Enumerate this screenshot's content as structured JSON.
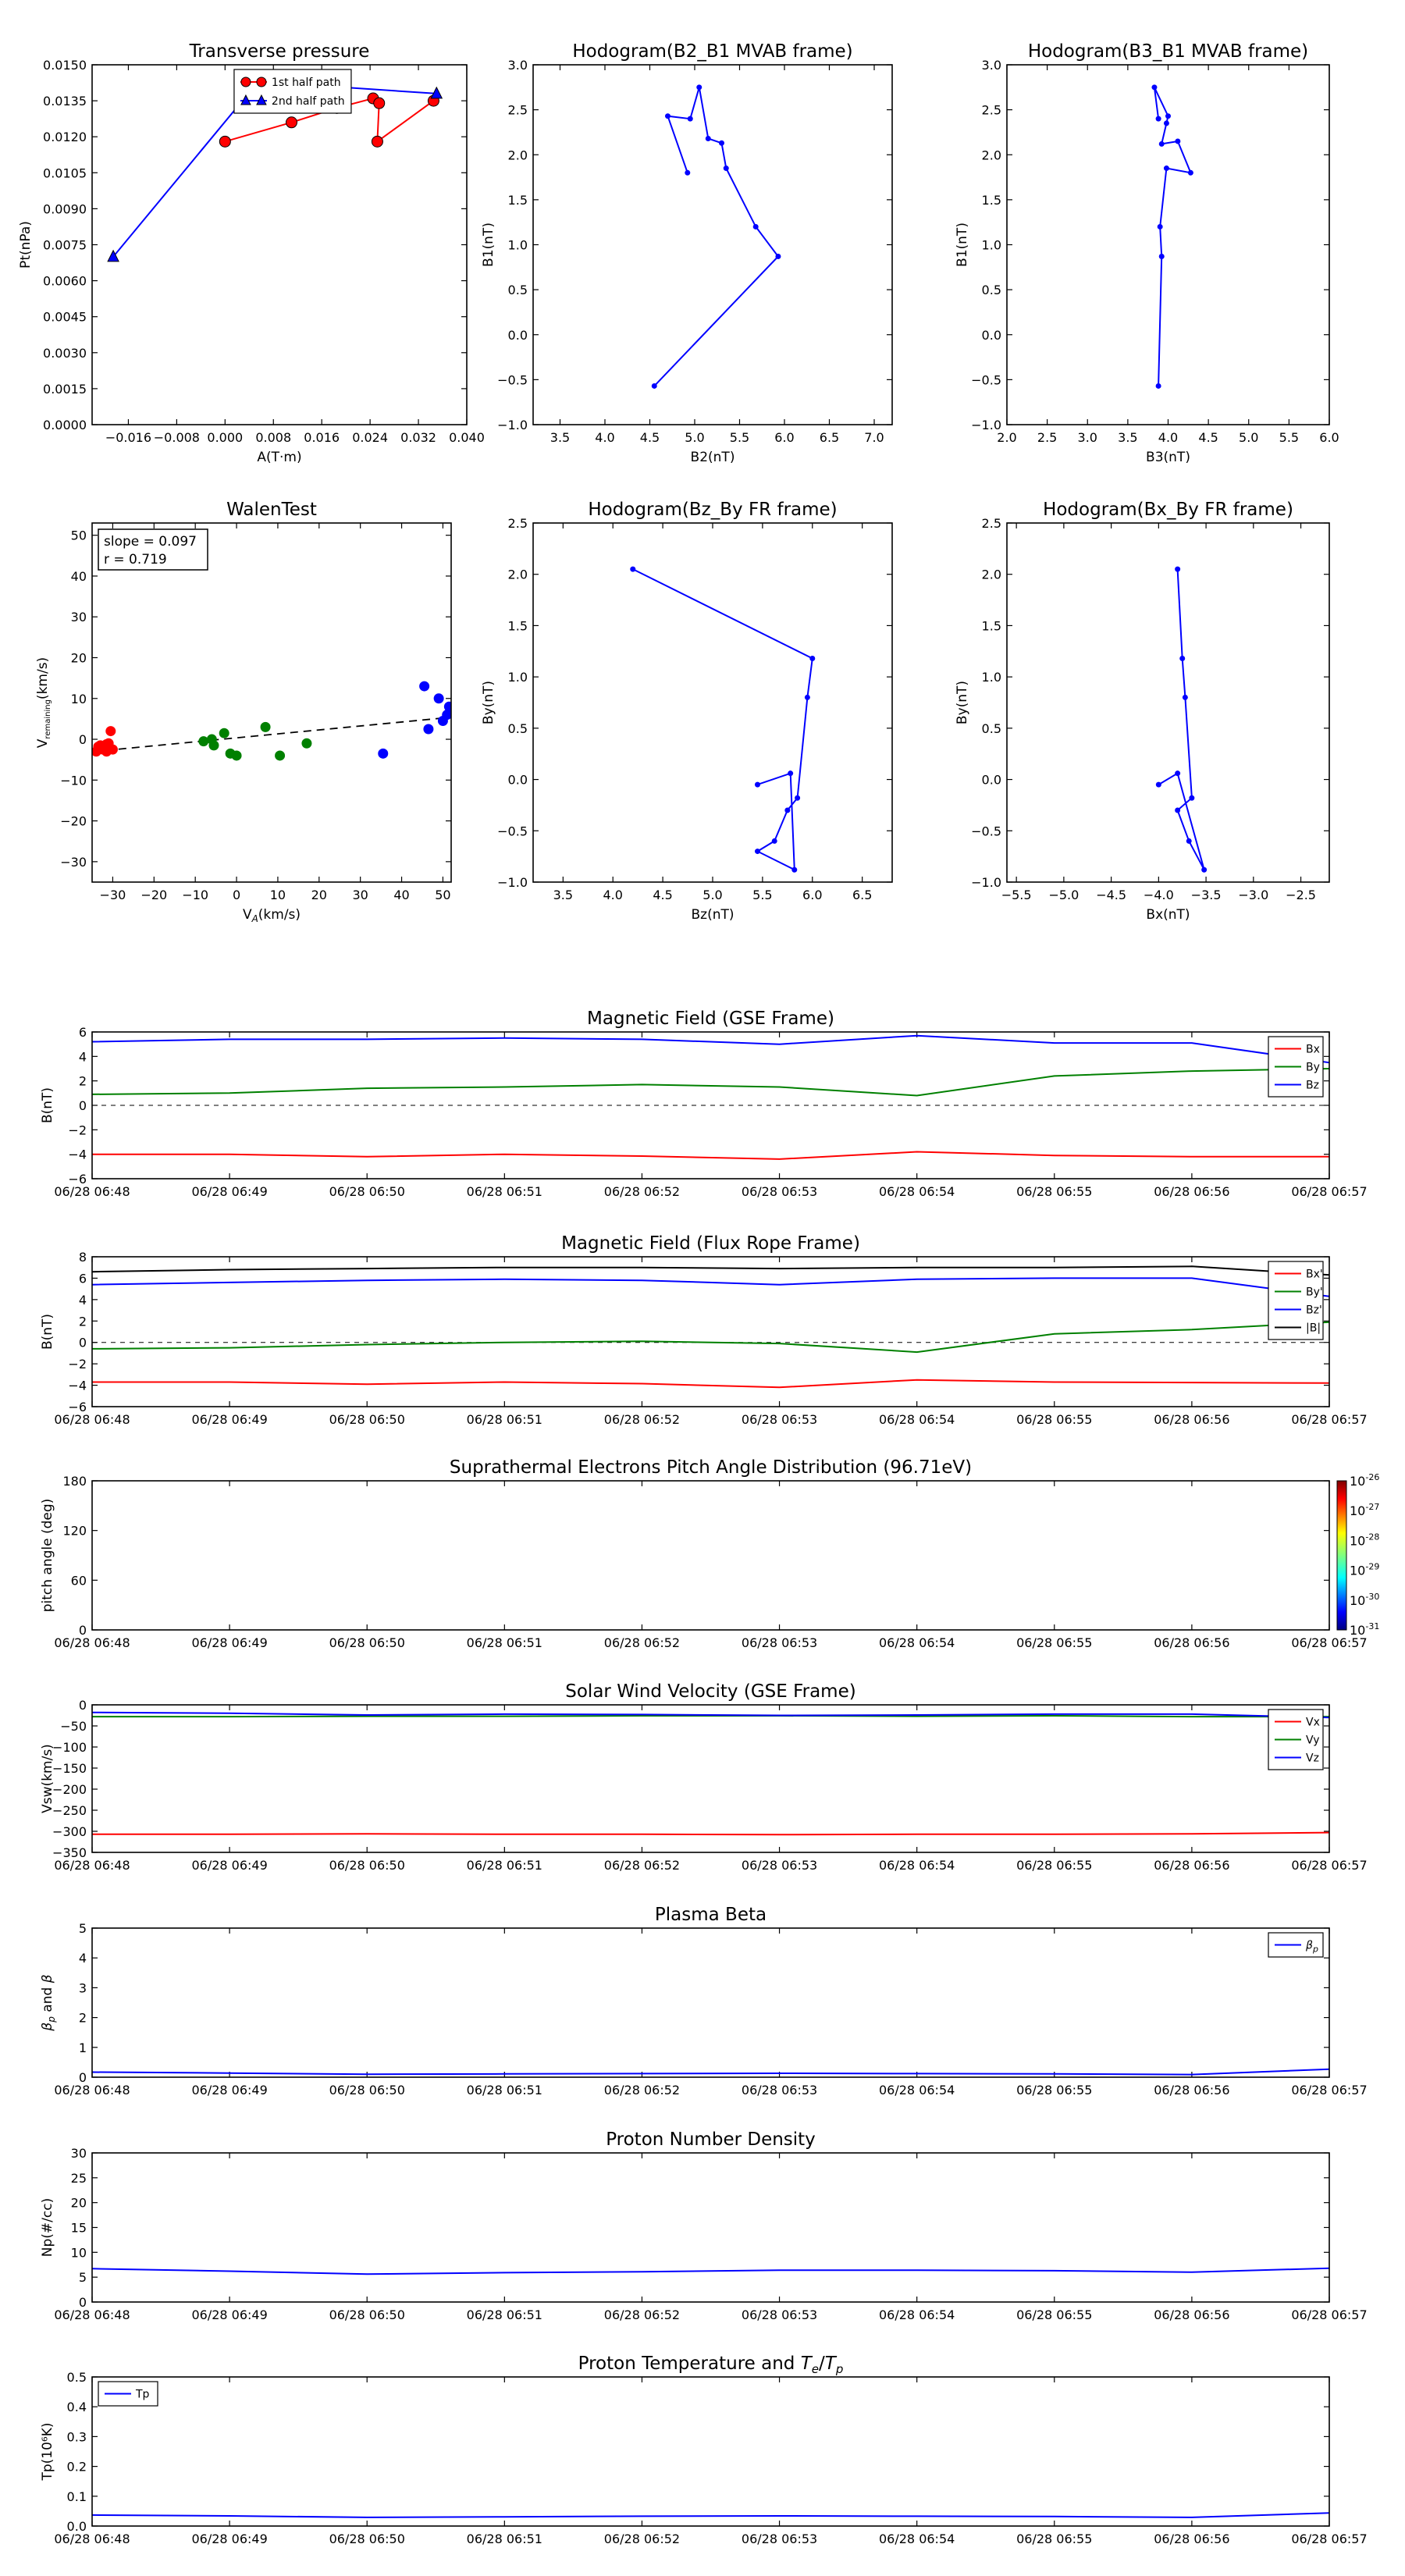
{
  "chart_data": [
    {
      "id": "tp",
      "type": "line",
      "title": "Transverse pressure",
      "xlabel": "A(T·m)",
      "ylabel": "Pt(nPa)",
      "xlim": [
        -0.022,
        0.04
      ],
      "ylim": [
        0,
        0.015
      ],
      "xticks": [
        -0.016,
        -0.008,
        0.0,
        0.008,
        0.016,
        0.024,
        0.032,
        0.04
      ],
      "xtick_labels": [
        "−0.016",
        "−0.008",
        "0.000",
        "0.008",
        "0.016",
        "0.024",
        "0.032",
        "0.040"
      ],
      "yticks": [
        0,
        0.0015,
        0.003,
        0.0045,
        0.006,
        0.0075,
        0.009,
        0.0105,
        0.012,
        0.0135,
        0.015
      ],
      "ytick_labels": [
        "0.0000",
        "0.0015",
        "0.0030",
        "0.0045",
        "0.0060",
        "0.0075",
        "0.0090",
        "0.0105",
        "0.0120",
        "0.0135",
        "0.0150"
      ],
      "legend": "top-center",
      "series": [
        {
          "name": "1st half path",
          "color": "#ff0000",
          "marker": "circle",
          "x": [
            0.0,
            0.011,
            0.0185,
            0.0245,
            0.0255,
            0.0252,
            0.0345
          ],
          "y": [
            0.0118,
            0.0126,
            0.0132,
            0.0136,
            0.0134,
            0.0118,
            0.0135
          ]
        },
        {
          "name": "2nd half path",
          "color": "#0000ff",
          "marker": "triangle",
          "x": [
            -0.0185,
            0.0055,
            0.035
          ],
          "y": [
            0.007,
            0.0143,
            0.0138
          ]
        }
      ]
    },
    {
      "id": "h21",
      "type": "line",
      "title": "Hodogram(B2_B1 MVAB frame)",
      "xlabel": "B2(nT)",
      "ylabel": "B1(nT)",
      "xlim": [
        3.2,
        7.2
      ],
      "ylim": [
        -1.0,
        3.0
      ],
      "xticks": [
        3.5,
        4.0,
        4.5,
        5.0,
        5.5,
        6.0,
        6.5,
        7.0
      ],
      "xtick_labels": [
        "3.5",
        "4.0",
        "4.5",
        "5.0",
        "5.5",
        "6.0",
        "6.5",
        "7.0"
      ],
      "yticks": [
        -1.0,
        -0.5,
        0.0,
        0.5,
        1.0,
        1.5,
        2.0,
        2.5,
        3.0
      ],
      "ytick_labels": [
        "−1.0",
        "−0.5",
        "0.0",
        "0.5",
        "1.0",
        "1.5",
        "2.0",
        "2.5",
        "3.0"
      ],
      "series": [
        {
          "color": "#0000ff",
          "x": [
            4.55,
            5.93,
            5.68,
            5.35,
            5.3,
            5.15,
            5.05,
            4.95,
            4.7,
            4.92
          ],
          "y": [
            -0.57,
            0.87,
            1.2,
            1.85,
            2.13,
            2.18,
            2.75,
            2.4,
            2.43,
            1.8
          ]
        }
      ]
    },
    {
      "id": "h31",
      "type": "line",
      "title": "Hodogram(B3_B1 MVAB frame)",
      "xlabel": "B3(nT)",
      "ylabel": "B1(nT)",
      "xlim": [
        2.0,
        6.0
      ],
      "ylim": [
        -1.0,
        3.0
      ],
      "xticks": [
        2.0,
        2.5,
        3.0,
        3.5,
        4.0,
        4.5,
        5.0,
        5.5,
        6.0
      ],
      "xtick_labels": [
        "2.0",
        "2.5",
        "3.0",
        "3.5",
        "4.0",
        "4.5",
        "5.0",
        "5.5",
        "6.0"
      ],
      "yticks": [
        -1.0,
        -0.5,
        0.0,
        0.5,
        1.0,
        1.5,
        2.0,
        2.5,
        3.0
      ],
      "ytick_labels": [
        "−1.0",
        "−0.5",
        "0.0",
        "0.5",
        "1.0",
        "1.5",
        "2.0",
        "2.5",
        "3.0"
      ],
      "series": [
        {
          "color": "#0000ff",
          "x": [
            3.88,
            3.92,
            3.9,
            3.98,
            4.28,
            4.12,
            3.92,
            3.98,
            4.0,
            3.83,
            3.88
          ],
          "y": [
            -0.57,
            0.87,
            1.2,
            1.85,
            1.8,
            2.15,
            2.12,
            2.35,
            2.43,
            2.75,
            2.4
          ]
        }
      ]
    },
    {
      "id": "walen",
      "type": "scatter",
      "title": "WalenTest",
      "xlabel": "V_A(km/s)",
      "ylabel": "V_remaining(km/s)",
      "xlim": [
        -35,
        52
      ],
      "ylim": [
        -35,
        53
      ],
      "xticks": [
        -30,
        -20,
        -10,
        0,
        10,
        20,
        30,
        40,
        50
      ],
      "xtick_labels": [
        "−30",
        "−20",
        "−10",
        "0",
        "10",
        "20",
        "30",
        "40",
        "50"
      ],
      "yticks": [
        -30,
        -20,
        -10,
        0,
        10,
        20,
        30,
        40,
        50
      ],
      "ytick_labels": [
        "−30",
        "−20",
        "−10",
        "0",
        "10",
        "20",
        "30",
        "40",
        "50"
      ],
      "annotation": [
        "slope = 0.097",
        "r = 0.719"
      ],
      "fit": {
        "slope": 0.097,
        "intercept": 0.35,
        "x": [
          -35,
          52
        ]
      },
      "series": [
        {
          "color": "#ff0000",
          "x": [
            -34,
            -33,
            -32.5,
            -32,
            -31.5,
            -31,
            -30.5,
            -30,
            -33.5,
            -31.5
          ],
          "y": [
            -3,
            -1.5,
            -2.5,
            -2,
            -3,
            -1,
            2,
            -2.5,
            -1.8,
            -1.2
          ]
        },
        {
          "color": "#008000",
          "x": [
            -8,
            -6,
            -5.5,
            -3,
            -1.5,
            0,
            7,
            10.5,
            17
          ],
          "y": [
            -0.5,
            0,
            -1.5,
            1.5,
            -3.5,
            -4,
            3,
            -4,
            -1
          ]
        },
        {
          "color": "#0000ff",
          "x": [
            35.5,
            45.5,
            46.5,
            49,
            50,
            51,
            51.5
          ],
          "y": [
            -3.5,
            13,
            2.5,
            10,
            4.5,
            6,
            8
          ]
        }
      ]
    },
    {
      "id": "hzy",
      "type": "line",
      "title": "Hodogram(Bz_By FR frame)",
      "xlabel": "Bz(nT)",
      "ylabel": "By(nT)",
      "xlim": [
        3.2,
        6.8
      ],
      "ylim": [
        -1.0,
        2.5
      ],
      "xticks": [
        3.5,
        4.0,
        4.5,
        5.0,
        5.5,
        6.0,
        6.5
      ],
      "xtick_labels": [
        "3.5",
        "4.0",
        "4.5",
        "5.0",
        "5.5",
        "6.0",
        "6.5"
      ],
      "yticks": [
        -1.0,
        -0.5,
        0.0,
        0.5,
        1.0,
        1.5,
        2.0,
        2.5
      ],
      "ytick_labels": [
        "−1.0",
        "−0.5",
        "0.0",
        "0.5",
        "1.0",
        "1.5",
        "2.0",
        "2.5"
      ],
      "series": [
        {
          "color": "#0000ff",
          "x": [
            4.2,
            6.0,
            5.95,
            5.85,
            5.75,
            5.62,
            5.45,
            5.82,
            5.78,
            5.45
          ],
          "y": [
            2.05,
            1.18,
            0.8,
            -0.18,
            -0.3,
            -0.6,
            -0.7,
            -0.88,
            0.06,
            -0.05
          ]
        }
      ]
    },
    {
      "id": "hxy",
      "type": "line",
      "title": "Hodogram(Bx_By FR frame)",
      "xlabel": "Bx(nT)",
      "ylabel": "By(nT)",
      "xlim": [
        -5.6,
        -2.2
      ],
      "ylim": [
        -1.0,
        2.5
      ],
      "xticks": [
        -5.5,
        -5.0,
        -4.5,
        -4.0,
        -3.5,
        -3.0,
        -2.5
      ],
      "xtick_labels": [
        "−5.5",
        "−5.0",
        "−4.5",
        "−4.0",
        "−3.5",
        "−3.0",
        "−2.5"
      ],
      "yticks": [
        -1.0,
        -0.5,
        0.0,
        0.5,
        1.0,
        1.5,
        2.0,
        2.5
      ],
      "ytick_labels": [
        "−1.0",
        "−0.5",
        "0.0",
        "0.5",
        "1.0",
        "1.5",
        "2.0",
        "2.5"
      ],
      "series": [
        {
          "color": "#0000ff",
          "x": [
            -3.8,
            -3.75,
            -3.72,
            -3.65,
            -3.8,
            -3.68,
            -3.52,
            -3.8,
            -4.0
          ],
          "y": [
            2.05,
            1.18,
            0.8,
            -0.18,
            -0.3,
            -0.6,
            -0.88,
            0.06,
            -0.05
          ]
        }
      ]
    },
    {
      "id": "mag_gse",
      "type": "line",
      "title": "Magnetic Field (GSE Frame)",
      "ylabel": "B(nT)",
      "xlim": [
        0,
        9
      ],
      "x_labels": [
        "06/28 06:48",
        "06/28 06:49",
        "06/28 06:50",
        "06/28 06:51",
        "06/28 06:52",
        "06/28 06:53",
        "06/28 06:54",
        "06/28 06:55",
        "06/28 06:56",
        "06/28 06:57"
      ],
      "ylim": [
        -6,
        6
      ],
      "yticks": [
        -6,
        -4,
        -2,
        0,
        2,
        4,
        6
      ],
      "ytick_labels": [
        "−6",
        "−4",
        "−2",
        "0",
        "2",
        "4",
        "6"
      ],
      "zero_line": true,
      "legend": "top-right",
      "x": [
        0,
        1,
        2,
        3,
        4,
        5,
        6,
        7,
        8,
        9
      ],
      "series": [
        {
          "name": "Bx",
          "color": "#ff0000",
          "values": [
            -4.0,
            -4.0,
            -4.2,
            -4.0,
            -4.15,
            -4.4,
            -3.8,
            -4.1,
            -4.2,
            -4.2
          ]
        },
        {
          "name": "By",
          "color": "#008000",
          "values": [
            0.9,
            1.0,
            1.4,
            1.5,
            1.7,
            1.5,
            0.8,
            2.4,
            2.8,
            3.0
          ]
        },
        {
          "name": "Bz",
          "color": "#0000ff",
          "values": [
            5.2,
            5.4,
            5.4,
            5.5,
            5.4,
            5.0,
            5.7,
            5.1,
            5.1,
            3.5
          ]
        }
      ]
    },
    {
      "id": "mag_fr",
      "type": "line",
      "title": "Magnetic Field (Flux Rope Frame)",
      "ylabel": "B(nT)",
      "xlim": [
        0,
        9
      ],
      "x_labels": [
        "06/28 06:48",
        "06/28 06:49",
        "06/28 06:50",
        "06/28 06:51",
        "06/28 06:52",
        "06/28 06:53",
        "06/28 06:54",
        "06/28 06:55",
        "06/28 06:56",
        "06/28 06:57"
      ],
      "ylim": [
        -6,
        8
      ],
      "yticks": [
        -6,
        -4,
        -2,
        0,
        2,
        4,
        6,
        8
      ],
      "ytick_labels": [
        "−6",
        "−4",
        "−2",
        "0",
        "2",
        "4",
        "6",
        "8"
      ],
      "zero_line": true,
      "legend": "top-right",
      "x": [
        0,
        1,
        2,
        3,
        4,
        5,
        6,
        7,
        8,
        9
      ],
      "series": [
        {
          "name": "Bx'",
          "color": "#ff0000",
          "values": [
            -3.7,
            -3.7,
            -3.9,
            -3.7,
            -3.85,
            -4.2,
            -3.5,
            -3.7,
            -3.75,
            -3.8
          ]
        },
        {
          "name": "By'",
          "color": "#008000",
          "values": [
            -0.6,
            -0.5,
            -0.2,
            0.0,
            0.1,
            -0.1,
            -0.9,
            0.8,
            1.2,
            1.9
          ]
        },
        {
          "name": "Bz'",
          "color": "#0000ff",
          "values": [
            5.4,
            5.6,
            5.8,
            5.9,
            5.8,
            5.4,
            5.9,
            6.0,
            6.0,
            4.3
          ]
        },
        {
          "name": "|B|",
          "color": "#000000",
          "values": [
            6.6,
            6.8,
            6.9,
            7.0,
            7.0,
            6.9,
            7.0,
            7.0,
            7.1,
            6.3
          ]
        }
      ]
    },
    {
      "id": "pad",
      "type": "heatmap",
      "title": "Suprathermal Electrons Pitch Angle Distribution (96.71eV)",
      "ylabel": "pitch angle (deg)",
      "xlim": [
        0,
        9
      ],
      "x_labels": [
        "06/28 06:48",
        "06/28 06:49",
        "06/28 06:50",
        "06/28 06:51",
        "06/28 06:52",
        "06/28 06:53",
        "06/28 06:54",
        "06/28 06:55",
        "06/28 06:56",
        "06/28 06:57"
      ],
      "ylim": [
        0,
        180
      ],
      "yticks": [
        0,
        60,
        120,
        180
      ],
      "ytick_labels": [
        "0",
        "60",
        "120",
        "180"
      ],
      "colorbar": {
        "labels": [
          "10-26",
          "10-27",
          "10-28",
          "10-29",
          "10-30",
          "10-31"
        ]
      }
    },
    {
      "id": "vsw",
      "type": "line",
      "title": "Solar Wind Velocity (GSE Frame)",
      "ylabel": "Vsw(km/s)",
      "xlim": [
        0,
        9
      ],
      "x_labels": [
        "06/28 06:48",
        "06/28 06:49",
        "06/28 06:50",
        "06/28 06:51",
        "06/28 06:52",
        "06/28 06:53",
        "06/28 06:54",
        "06/28 06:55",
        "06/28 06:56",
        "06/28 06:57"
      ],
      "ylim": [
        -350,
        0
      ],
      "yticks": [
        -350,
        -300,
        -250,
        -200,
        -150,
        -100,
        -50,
        0
      ],
      "ytick_labels": [
        "−350",
        "−300",
        "−250",
        "−200",
        "−150",
        "−100",
        "−50",
        "0"
      ],
      "legend": "top-right",
      "x": [
        0,
        1,
        2,
        3,
        4,
        5,
        6,
        7,
        8,
        9
      ],
      "series": [
        {
          "name": "Vx",
          "color": "#ff0000",
          "values": [
            -307,
            -307,
            -306,
            -307,
            -307,
            -308,
            -307,
            -307,
            -306,
            -303
          ]
        },
        {
          "name": "Vy",
          "color": "#008000",
          "values": [
            -28,
            -28,
            -27,
            -27,
            -26,
            -26,
            -27,
            -26,
            -28,
            -28
          ]
        },
        {
          "name": "Vz",
          "color": "#0000ff",
          "values": [
            -18,
            -20,
            -24,
            -22,
            -23,
            -25,
            -24,
            -22,
            -22,
            -30
          ]
        }
      ]
    },
    {
      "id": "beta",
      "type": "line",
      "title": "Plasma Beta",
      "ylabel": "βp and β",
      "xlim": [
        0,
        9
      ],
      "x_labels": [
        "06/28 06:48",
        "06/28 06:49",
        "06/28 06:50",
        "06/28 06:51",
        "06/28 06:52",
        "06/28 06:53",
        "06/28 06:54",
        "06/28 06:55",
        "06/28 06:56",
        "06/28 06:57"
      ],
      "ylim": [
        0,
        5
      ],
      "yticks": [
        0,
        1,
        2,
        3,
        4,
        5
      ],
      "ytick_labels": [
        "0",
        "1",
        "2",
        "3",
        "4",
        "5"
      ],
      "legend": "top-right",
      "x": [
        0,
        1,
        2,
        3,
        4,
        5,
        6,
        7,
        8,
        9
      ],
      "series": [
        {
          "name": "βp",
          "color": "#0000ff",
          "values": [
            0.17,
            0.14,
            0.1,
            0.11,
            0.12,
            0.13,
            0.12,
            0.11,
            0.09,
            0.27
          ]
        }
      ]
    },
    {
      "id": "np",
      "type": "line",
      "title": "Proton Number Density",
      "ylabel": "Np(#/cc)",
      "xlim": [
        0,
        9
      ],
      "x_labels": [
        "06/28 06:48",
        "06/28 06:49",
        "06/28 06:50",
        "06/28 06:51",
        "06/28 06:52",
        "06/28 06:53",
        "06/28 06:54",
        "06/28 06:55",
        "06/28 06:56",
        "06/28 06:57"
      ],
      "ylim": [
        0,
        30
      ],
      "yticks": [
        0,
        5,
        10,
        15,
        20,
        25,
        30
      ],
      "ytick_labels": [
        "0",
        "5",
        "10",
        "15",
        "20",
        "25",
        "30"
      ],
      "x": [
        0,
        1,
        2,
        3,
        4,
        5,
        6,
        7,
        8,
        9
      ],
      "series": [
        {
          "color": "#0000ff",
          "values": [
            6.7,
            6.2,
            5.6,
            5.9,
            6.1,
            6.4,
            6.4,
            6.3,
            6.0,
            6.8
          ]
        }
      ]
    },
    {
      "id": "tp_temp",
      "type": "line",
      "title": "Proton Temperature and Te/Tp",
      "ylabel": "Tp(10⁶K)",
      "xlim": [
        0,
        9
      ],
      "x_labels": [
        "06/28 06:48",
        "06/28 06:49",
        "06/28 06:50",
        "06/28 06:51",
        "06/28 06:52",
        "06/28 06:53",
        "06/28 06:54",
        "06/28 06:55",
        "06/28 06:56",
        "06/28 06:57"
      ],
      "ylim": [
        0,
        0.5
      ],
      "yticks": [
        0,
        0.1,
        0.2,
        0.3,
        0.4,
        0.5
      ],
      "ytick_labels": [
        "0.0",
        "0.1",
        "0.2",
        "0.3",
        "0.4",
        "0.5"
      ],
      "legend": "top-left",
      "x": [
        0,
        1,
        2,
        3,
        4,
        5,
        6,
        7,
        8,
        9
      ],
      "series": [
        {
          "name": "Tp",
          "color": "#0000ff",
          "values": [
            0.037,
            0.034,
            0.029,
            0.031,
            0.033,
            0.034,
            0.033,
            0.032,
            0.029,
            0.044
          ]
        }
      ]
    }
  ]
}
